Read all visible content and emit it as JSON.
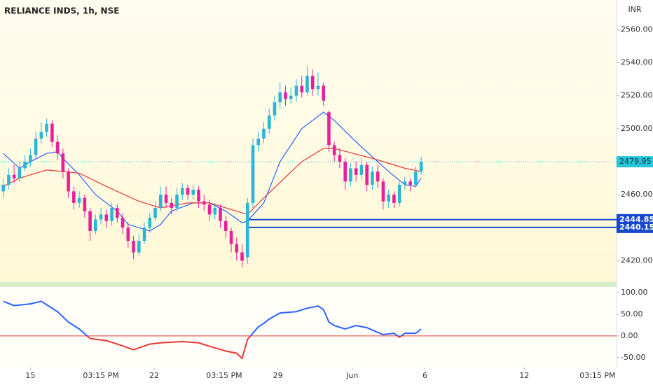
{
  "chart_data": {
    "type": "candlestick",
    "title": "RELIANCE INDS, 1h, NSE",
    "currency_label": "INR",
    "xlim": [
      -0.6,
      113
    ],
    "xticks": [
      {
        "value": 5,
        "label": "15"
      },
      {
        "value": 18,
        "label": "03:15 PM"
      },
      {
        "value": 27.8,
        "label": "22"
      },
      {
        "value": 40.7,
        "label": "03:15 PM"
      },
      {
        "value": 50.6,
        "label": "29"
      },
      {
        "value": 64.3,
        "label": "Jun"
      },
      {
        "value": 77.7,
        "label": "6"
      },
      {
        "value": 96,
        "label": "12"
      },
      {
        "value": 109.5,
        "label": "03:15 PM"
      }
    ],
    "ylim": [
      2407,
      2578
    ],
    "yticks": [
      {
        "value": 2420,
        "label": "2420.00"
      },
      {
        "value": 2460,
        "label": "2460.00"
      },
      {
        "value": 2500,
        "label": "2500.00"
      },
      {
        "value": 2520,
        "label": "2520.00"
      },
      {
        "value": 2540,
        "label": "2540.00"
      },
      {
        "value": 2560,
        "label": "2560.00"
      }
    ],
    "up_color": "#29b6d8",
    "down_color": "#e91e9c",
    "open": [
      2462,
      2466,
      2472,
      2470,
      2476,
      2480,
      2484,
      2494,
      2498,
      2503,
      2492,
      2485,
      2474,
      2462,
      2455,
      2458,
      2450,
      2438,
      2445,
      2448,
      2444,
      2452,
      2446,
      2440,
      2432,
      2425,
      2432,
      2440,
      2446,
      2452,
      2460,
      2455,
      2452,
      2460,
      2464,
      2460,
      2463,
      2456,
      2454,
      2448,
      2452,
      2444,
      2438,
      2430,
      2425,
      2422,
      2455,
      2490,
      2494,
      2500,
      2508,
      2516,
      2522,
      2518,
      2520,
      2526,
      2522,
      2532,
      2524,
      2526,
      2510,
      2490,
      2484,
      2480,
      2468,
      2476,
      2472,
      2478,
      2466,
      2474,
      2468,
      2456,
      2460,
      2455,
      2466,
      2468,
      2466,
      2474
    ],
    "high": [
      2470,
      2476,
      2478,
      2480,
      2484,
      2488,
      2498,
      2504,
      2506,
      2505,
      2496,
      2488,
      2476,
      2465,
      2462,
      2460,
      2452,
      2448,
      2452,
      2451,
      2455,
      2454,
      2449,
      2443,
      2435,
      2436,
      2443,
      2449,
      2456,
      2465,
      2465,
      2458,
      2464,
      2467,
      2466,
      2466,
      2465,
      2460,
      2457,
      2455,
      2454,
      2447,
      2440,
      2434,
      2430,
      2458,
      2494,
      2498,
      2504,
      2512,
      2520,
      2528,
      2526,
      2525,
      2530,
      2532,
      2538,
      2536,
      2534,
      2528,
      2511,
      2492,
      2488,
      2482,
      2479,
      2480,
      2482,
      2480,
      2477,
      2478,
      2470,
      2463,
      2462,
      2468,
      2471,
      2470,
      2477,
      2483
    ],
    "low": [
      2458,
      2463,
      2467,
      2468,
      2474,
      2477,
      2482,
      2491,
      2495,
      2489,
      2481,
      2470,
      2458,
      2451,
      2452,
      2446,
      2432,
      2436,
      2442,
      2440,
      2441,
      2443,
      2436,
      2428,
      2421,
      2423,
      2430,
      2437,
      2444,
      2450,
      2452,
      2448,
      2450,
      2457,
      2457,
      2457,
      2452,
      2450,
      2444,
      2445,
      2440,
      2434,
      2425,
      2420,
      2416,
      2418,
      2452,
      2486,
      2491,
      2497,
      2505,
      2512,
      2514,
      2515,
      2516,
      2519,
      2520,
      2520,
      2520,
      2514,
      2486,
      2480,
      2476,
      2463,
      2465,
      2468,
      2469,
      2462,
      2463,
      2464,
      2451,
      2452,
      2452,
      2453,
      2463,
      2462,
      2464,
      2472
    ],
    "close": [
      2466,
      2472,
      2470,
      2476,
      2480,
      2484,
      2494,
      2498,
      2503,
      2492,
      2485,
      2474,
      2462,
      2455,
      2458,
      2450,
      2438,
      2445,
      2448,
      2444,
      2452,
      2446,
      2440,
      2432,
      2425,
      2432,
      2440,
      2446,
      2452,
      2460,
      2455,
      2452,
      2460,
      2464,
      2460,
      2463,
      2456,
      2454,
      2448,
      2452,
      2444,
      2438,
      2430,
      2425,
      2420,
      2455,
      2490,
      2494,
      2500,
      2508,
      2516,
      2522,
      2518,
      2520,
      2526,
      2522,
      2532,
      2524,
      2526,
      2517,
      2490,
      2484,
      2480,
      2468,
      2476,
      2472,
      2478,
      2466,
      2474,
      2468,
      2456,
      2460,
      2455,
      2466,
      2468,
      2466,
      2474,
      2479.95
    ],
    "moving_averages": [
      {
        "color": "#2962ff",
        "x": [
          0,
          3,
          5,
          8,
          10,
          11,
          14,
          17,
          21,
          23,
          27,
          29,
          31,
          35,
          38,
          41,
          44,
          45,
          48,
          51,
          55,
          59,
          61,
          65,
          68,
          71,
          74,
          76,
          77
        ],
        "values": [
          2485,
          2476,
          2480,
          2485,
          2486,
          2482,
          2472,
          2460,
          2450,
          2442,
          2438,
          2442,
          2450,
          2455,
          2455,
          2450,
          2443,
          2444,
          2455,
          2480,
          2500,
          2510,
          2505,
          2492,
          2483,
          2474,
          2466,
          2465,
          2470
        ]
      },
      {
        "color": "#e53935",
        "x": [
          0,
          3,
          8,
          14,
          19,
          25,
          29,
          34,
          38,
          43,
          45,
          48,
          55,
          59,
          61,
          68,
          74,
          77
        ],
        "values": [
          2465,
          2470,
          2475,
          2473,
          2465,
          2456,
          2452,
          2455,
          2455,
          2450,
          2448,
          2458,
          2480,
          2488,
          2488,
          2482,
          2476,
          2474
        ]
      }
    ],
    "levels": [
      2444.85,
      2440.15
    ],
    "level_color": "#1848cc",
    "last_price": 2479.95,
    "last_price_color": "#26c6da",
    "oscillator": {
      "type": "line",
      "x": [
        0,
        2,
        5,
        7,
        8,
        10,
        12,
        14,
        16,
        19,
        22,
        24,
        27,
        29,
        33,
        36,
        38,
        41,
        43,
        44,
        45,
        47,
        48,
        49,
        51,
        54,
        56,
        58,
        59,
        60,
        61,
        63,
        65,
        67,
        69,
        70,
        72,
        73,
        74,
        76,
        77
      ],
      "values": [
        80,
        70,
        74,
        80,
        72,
        56,
        32,
        16,
        -6,
        -11,
        -23,
        -32,
        -19,
        -16,
        -13,
        -16,
        -24,
        -35,
        -40,
        -52,
        -8,
        21,
        29,
        39,
        53,
        56,
        64,
        69,
        61,
        32,
        24,
        16,
        24,
        19,
        8,
        3,
        6,
        -3,
        6,
        6,
        16
      ],
      "ylim": [
        -73,
        113
      ],
      "yticks": [
        {
          "value": 100,
          "label": "100.00"
        },
        {
          "value": 50,
          "label": "50.00"
        },
        {
          "value": 0,
          "label": "0.00"
        },
        {
          "value": -50,
          "label": "-50.00"
        }
      ],
      "color_above": "#2962ff",
      "color_below": "#e53935",
      "zero_line_color": "#e53935"
    }
  }
}
